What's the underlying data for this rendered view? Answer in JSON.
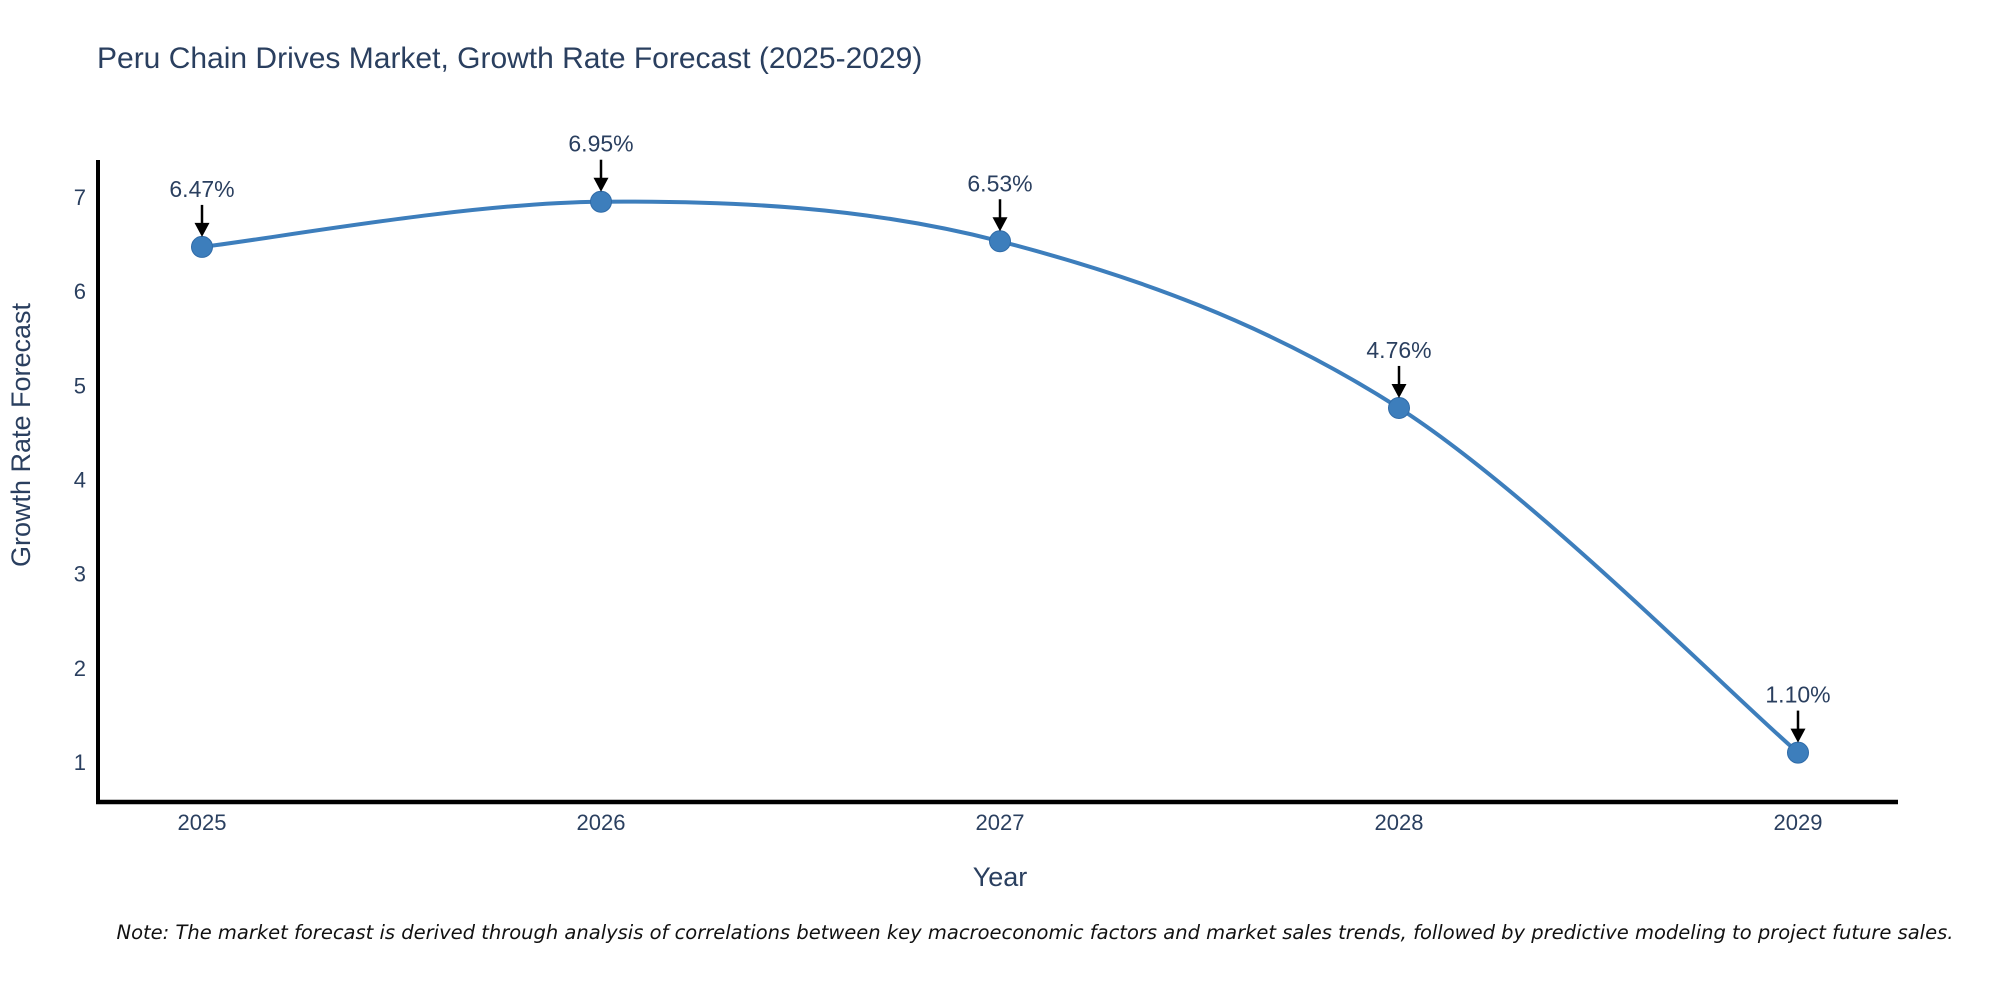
{
  "figure": {
    "title": "Peru Chain Drives Market, Growth Rate Forecast (2025-2029)",
    "note": "Note: The market forecast is derived through analysis of correlations between key macroeconomic factors and market sales trends, followed by predictive modeling to project future sales."
  },
  "colors": {
    "series_blue": "#3d7ebc",
    "marker_edge": "#2f6ba8",
    "heading_text": "#2a3f5f",
    "tick_text": "#2a3f5f",
    "annotation_text": "#2a3f5f",
    "axis_line": "#000000",
    "arrow": "#000000",
    "note_text": "#111111",
    "background": "#ffffff"
  },
  "chart_data": {
    "type": "line",
    "title": "Peru Chain Drives Market, Growth Rate Forecast (2025-2029)",
    "xlabel": "Year",
    "ylabel": "Growth Rate Forecast",
    "x": [
      2025,
      2026,
      2027,
      2028,
      2029
    ],
    "series": [
      {
        "name": "Growth Rate Forecast",
        "values": [
          6.47,
          6.95,
          6.53,
          4.76,
          1.1
        ]
      }
    ],
    "point_labels": [
      "6.47%",
      "6.95%",
      "6.53%",
      "4.76%",
      "1.10%"
    ],
    "x_tick_labels": [
      "2025",
      "2026",
      "2027",
      "2028",
      "2029"
    ],
    "y_ticks": [
      1,
      2,
      3,
      4,
      5,
      6,
      7
    ],
    "ylim": [
      0.55,
      7.4
    ],
    "xlim": [
      2024.74,
      2029.25
    ],
    "grid": false,
    "legend": "none",
    "line_shape": "spline",
    "markers": true,
    "annotations": "each point labeled with its percent value and a black down-arrow pointing at the marker"
  }
}
